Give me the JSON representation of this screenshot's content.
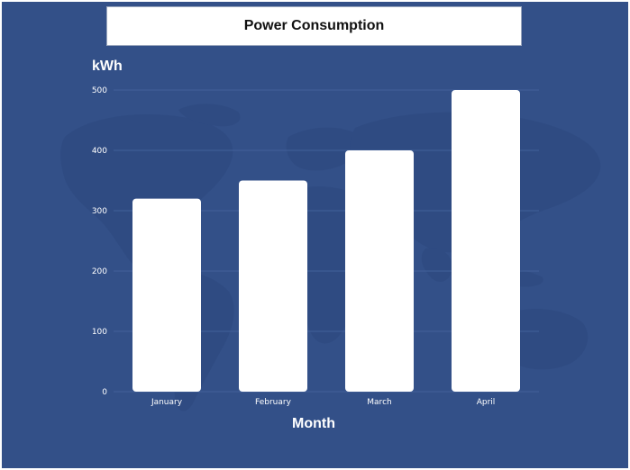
{
  "chart_data": {
    "type": "bar",
    "title": "Power Consumption",
    "xlabel": "Month",
    "ylabel": "kWh",
    "categories": [
      "January",
      "February",
      "March",
      "April"
    ],
    "values": [
      320,
      350,
      400,
      500
    ],
    "ylim": [
      0,
      500
    ],
    "yticks": [
      0,
      100,
      200,
      300,
      400,
      500
    ],
    "grid": true,
    "legend": "none",
    "colors": {
      "background": "#335088",
      "map": "#2e4a80",
      "bar": "#ffffff",
      "text": "#ffffff",
      "grid": "#4a67a0"
    }
  }
}
